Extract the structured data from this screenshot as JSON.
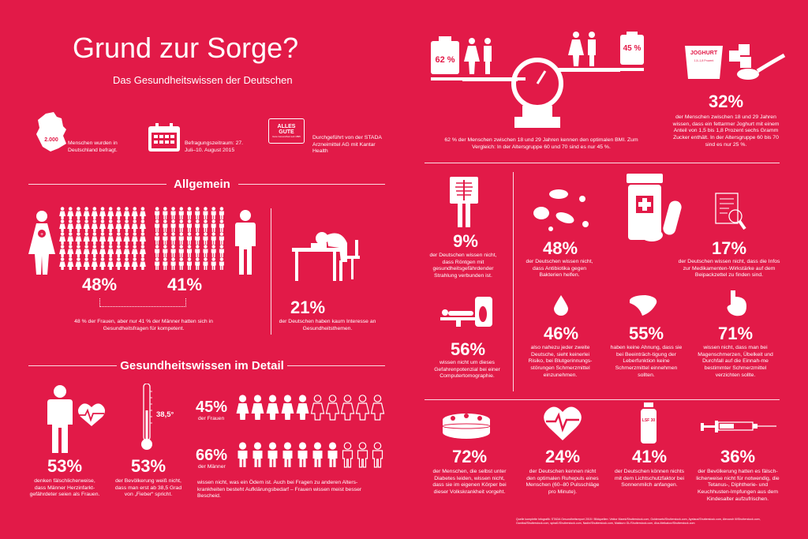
{
  "title": "Grund zur Sorge?",
  "subtitle": "Das Gesundheitswissen der Deutschen",
  "info": {
    "people_count": "2.000",
    "people_text": "Menschen wurden in Deutschland befragt.",
    "period_text": "Befragungszeitraum: 27. Juli–10. August 2015",
    "logo_text": "ALLES GUTE",
    "logo_sub": "Gute Gesundheit seit 1895",
    "conducted_text": "Durchgeführt von der STADA Arzneimittel AG mit Kantar Health"
  },
  "allgemein": {
    "header": "Allgemein",
    "women_pct": "48%",
    "men_pct": "41%",
    "compare_text": "48 % der Frauen, aber nur 41 % der Männer hatten sich in Gesundheitsfragen für kompetent.",
    "interest_pct": "21%",
    "interest_text": "der Deutschen haben kaum Interesse an Gesundheitsthemen."
  },
  "detail": {
    "header": "Gesundheitswissen im Detail",
    "heart_pct": "53%",
    "heart_text": "denken fälschlicherweise, dass Männer Herzinfarkt-gefährdeter seien als Frauen.",
    "fever_temp": "38,5°",
    "fever_pct": "53%",
    "fever_text": "der Bevölkerung weiß nicht, dass man erst ab 38,5 Grad von „Fieber“ spricht.",
    "women_pct": "45%",
    "women_label": "der Frauen",
    "men_pct": "66%",
    "men_label": "der Männer",
    "oedem_text": "wissen nicht, was ein Ödem ist. Auch bei Fragen zu anderen Alters-krankheiten besteht Aufklärungsbedarf – Frauen wissen meist besser Bescheid."
  },
  "bmi": {
    "left_pct": "62 %",
    "right_pct": "45 %",
    "text": "62 % der Menschen zwischen 18 und 29 Jahren kennen den optimalen BMI. Zum Vergleich: In der Altersgruppe 60 und 70 sind es nur 45 %."
  },
  "joghurt": {
    "label": "JOGHURT",
    "sub": "1,5–1,8 Prozent",
    "pct": "32%",
    "text": "der Menschen zwischen 18 und 29 Jahren wissen, dass ein fettarmer Joghurt mit einem Anteil von 1,5 bis 1,8 Prozent sechs Gramm Zucker enthält. In der Altersgruppe 60 bis 70 sind es nur 25 %."
  },
  "xray": {
    "pct": "9%",
    "text": "der Deutschen wissen nicht, dass Röntgen mit gesundheitsgefährdender Strahlung verbunden ist."
  },
  "antibiotics": {
    "pct": "48%",
    "text": "der Deutschen wissen nicht, dass Antibiotika gegen Bakterien helfen."
  },
  "leaflet": {
    "pct": "17%",
    "text": "der Deutschen wissen nicht, dass die Infos zur Medikamenten-Wirkstärke auf dem Beipackzettel zu finden sind."
  },
  "ct": {
    "pct": "56%",
    "text": "wissen nicht um dieses Gefahrenpotenzial bei einer Computertomographie."
  },
  "blood": {
    "pct": "46%",
    "text": "also nahezu jeder zweite Deutsche, sieht keinerlei Risiko, bei Blutgerinnungs-störungen Schmerzmittel einzunehmen."
  },
  "liver": {
    "pct": "55%",
    "text": "haben keine Ahnung, dass sie bei Beeinträch-tigung der Leberfunktion keine Schmerzmittel einnehmen sollten."
  },
  "stomach": {
    "pct": "71%",
    "text": "wissen nicht, dass man bei Magenschmerzen, Übelkeit und Durchfall auf die Einnah-me bestimmter Schmerzmittel verzichten sollte."
  },
  "diabetes": {
    "pct": "72%",
    "text": "der Menschen, die selbst unter Diabetes leiden, wissen nicht, dass sie im eigenen Körper bei dieser Volkskrankheit vorgeht."
  },
  "pulse": {
    "pct": "24%",
    "text": "der Deutschen kennen nicht den optimalen Ruhepuls eines Menschen (60–80 Pulsschläge pro Minute)."
  },
  "sun": {
    "label": "LSF 30",
    "pct": "41%",
    "text": "der Deutschen können nichts mit dem Lichtschutzfaktor bei Sonnenmilch anfangen."
  },
  "vaccine": {
    "pct": "36%",
    "text": "der Bevölkerung hatten es fälsch-licherweise nicht für notwendig, die Tetanus-, Diphtherie- und Keuchhusten-Impfungen aus dem Kindesalter aufzufrischen."
  },
  "source": "Quelle komplette Infografik: STADA Gesundheitsreport 2015 / Bildquellen: Vektor Marek/Shutterstock.com, Goldenarts/Shutterstock.com, Ayelaus/Shutterstock.com, Alexandr III/Shutterstock.com, Gantbal/Shutterstock.com, spiral1/Shutterstock.com, Nadin/Shutterstock.com, Makkuro GL/Shutterstock.com, Aha-Melkakov/Shutterstock.com"
}
